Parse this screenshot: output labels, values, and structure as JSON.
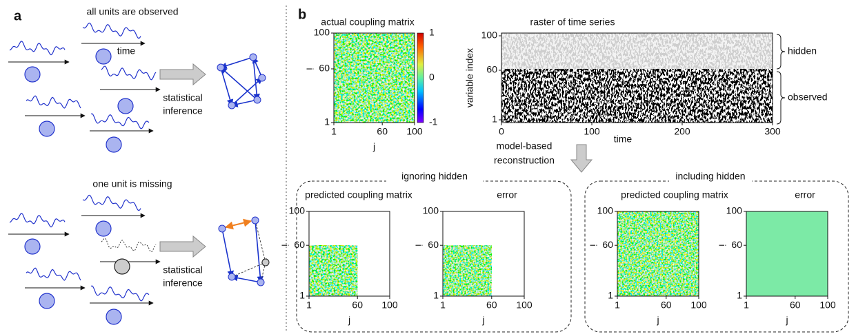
{
  "panel_a": {
    "label": "a",
    "top": {
      "title": "all units are observed",
      "time_label": "time",
      "inference": [
        "statistical",
        "inference"
      ]
    },
    "bottom": {
      "title": "one unit is missing",
      "inference": [
        "statistical",
        "inference"
      ]
    }
  },
  "panel_b": {
    "label": "b",
    "actual": {
      "title": "actual coupling matrix",
      "yticks": [
        "100",
        "60",
        "1"
      ],
      "xticks": [
        "1",
        "60",
        "100"
      ],
      "xlabel": "j",
      "ylabel": "i",
      "colorbar_ticks": [
        "1",
        "0",
        "-1"
      ]
    },
    "raster": {
      "title": "raster of time series",
      "ylabel": "variable index",
      "xlabel": "time",
      "yticks": [
        "100",
        "60",
        "1"
      ],
      "xticks": [
        "0",
        "100",
        "200",
        "300"
      ],
      "hidden": "hidden",
      "observed": "observed"
    },
    "reconstruction_label": [
      "model-based",
      "reconstruction"
    ],
    "ignoring_hidden": {
      "title": "ignoring hidden",
      "predicted": {
        "title": "predicted coupling matrix",
        "yticks": [
          "100",
          "60",
          "1"
        ],
        "xticks": [
          "1",
          "60",
          "100"
        ],
        "xlabel": "j",
        "ylabel": "i"
      },
      "error": {
        "title": "error",
        "yticks": [
          "100",
          "60",
          "1"
        ],
        "xticks": [
          "1",
          "60",
          "100"
        ],
        "xlabel": "j",
        "ylabel": "i"
      }
    },
    "including_hidden": {
      "title": "including hidden",
      "predicted": {
        "title": "predicted coupling matrix",
        "yticks": [
          "100",
          "60",
          "1"
        ],
        "xticks": [
          "1",
          "60",
          "100"
        ],
        "xlabel": "j",
        "ylabel": "i"
      },
      "error": {
        "title": "error",
        "yticks": [
          "100",
          "60",
          "1"
        ],
        "xticks": [
          "1",
          "60",
          "100"
        ],
        "xlabel": "j",
        "ylabel": "i"
      }
    }
  }
}
